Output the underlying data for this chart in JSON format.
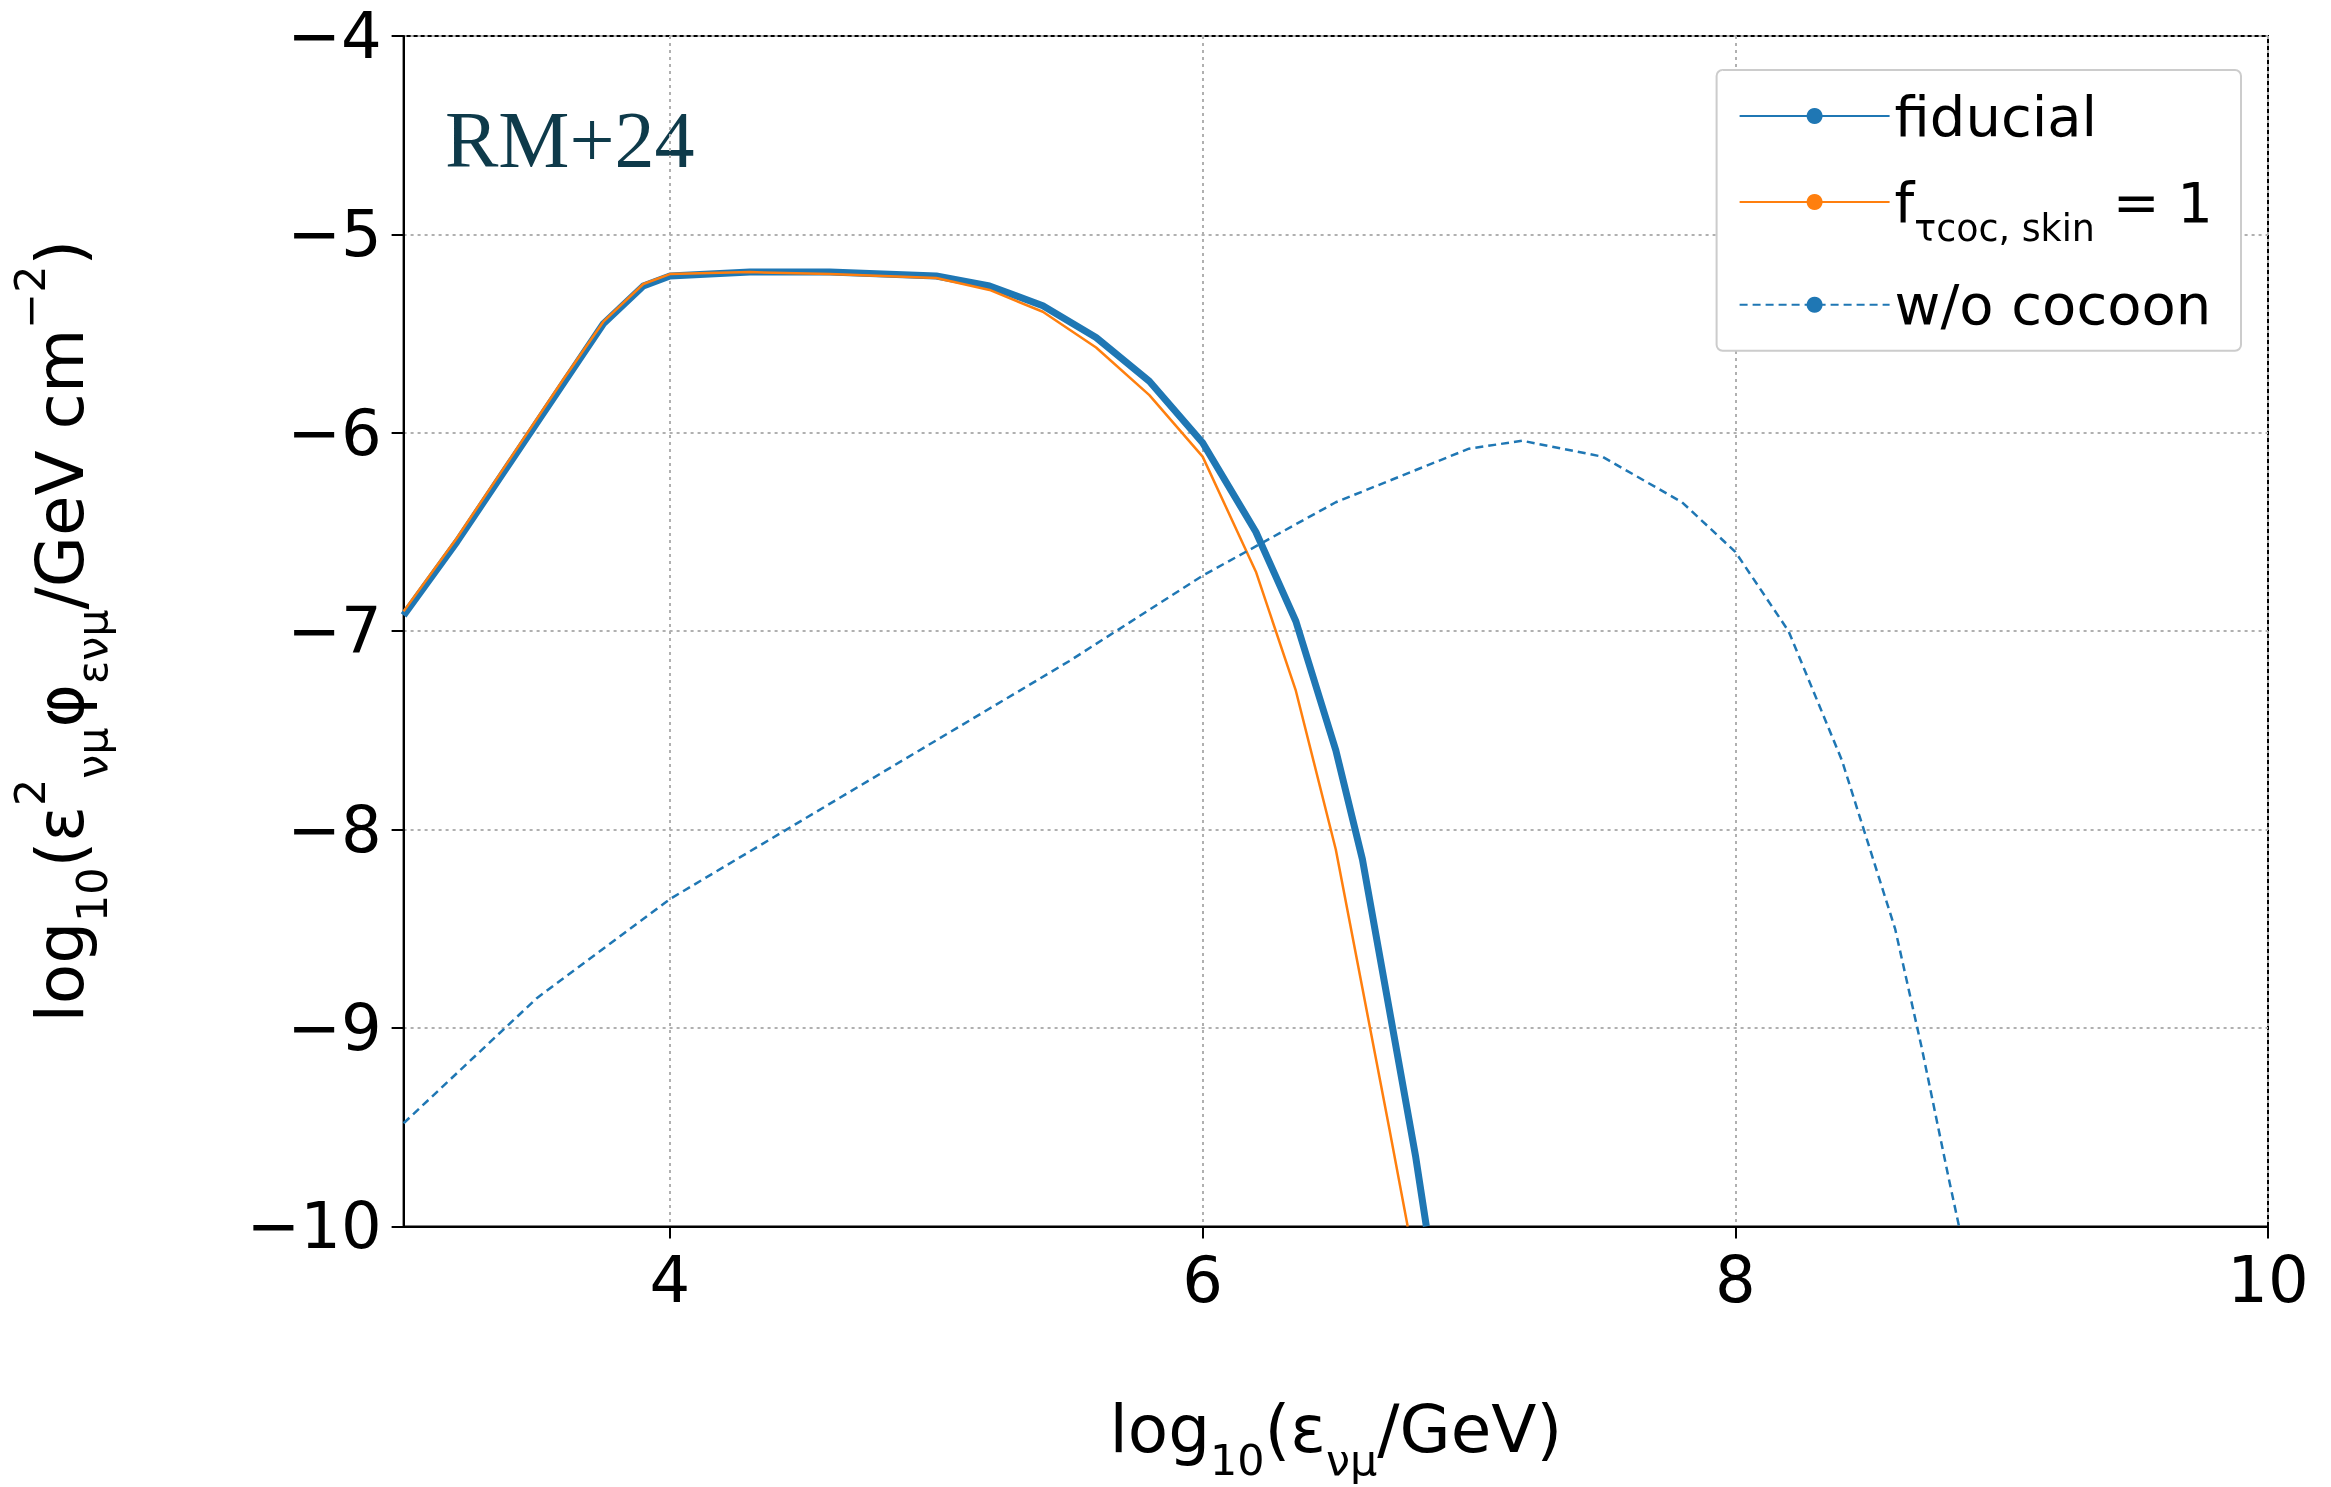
{
  "chart_data": {
    "type": "line",
    "xlabel": "log$_{10}$(ε$_{νμ}$/GeV)",
    "ylabel": "log$_{10}$(ε$^{2}$$_{νμ}$φ$_{ενμ}$/GeV cm$^{−2}$)",
    "annotations": [
      "RM+24"
    ],
    "xlim": [
      3,
      10
    ],
    "xticks": [
      4,
      6,
      8,
      10
    ],
    "ylim": [
      -10,
      -4
    ],
    "yticks": [
      -10,
      -9,
      -8,
      -7,
      -6,
      -5,
      -4
    ],
    "grid": true,
    "legend": "top right",
    "marker": "none",
    "series": [
      {
        "name": "fiducial",
        "color": "#1f77b4",
        "line_style": "solid",
        "x": [
          3,
          3.2,
          3.4,
          3.6,
          3.75,
          3.9,
          4.0,
          4.3,
          4.6,
          5.0,
          5.2,
          5.4,
          5.6,
          5.8,
          6.0,
          6.2,
          6.35,
          6.5,
          6.6,
          6.7,
          6.8,
          6.84
        ],
        "values": [
          -6.92,
          -6.55,
          -6.15,
          -5.75,
          -5.45,
          -5.26,
          -5.21,
          -5.19,
          -5.19,
          -5.21,
          -5.26,
          -5.36,
          -5.52,
          -5.74,
          -6.05,
          -6.5,
          -6.95,
          -7.6,
          -8.15,
          -8.9,
          -9.65,
          -10
        ]
      },
      {
        "name": "f$_{τcoc, skin}$ = 1",
        "color": "#ff7f0e",
        "line_style": "solid",
        "x": [
          3,
          3.2,
          3.4,
          3.6,
          3.75,
          3.9,
          4.0,
          4.3,
          4.6,
          5.0,
          5.2,
          5.4,
          5.6,
          5.8,
          6.0,
          6.2,
          6.35,
          6.5,
          6.6,
          6.7,
          6.77
        ],
        "values": [
          -6.9,
          -6.53,
          -6.13,
          -5.73,
          -5.44,
          -5.25,
          -5.2,
          -5.19,
          -5.2,
          -5.22,
          -5.28,
          -5.39,
          -5.57,
          -5.81,
          -6.12,
          -6.7,
          -7.3,
          -8.1,
          -8.8,
          -9.5,
          -10
        ]
      },
      {
        "name": "w/o cocoon",
        "color": "#1f77b4",
        "line_style": "dashed",
        "x": [
          3,
          3.5,
          4,
          4.5,
          5,
          5.5,
          6,
          6.5,
          7,
          7.2,
          7.5,
          7.8,
          8,
          8.2,
          8.4,
          8.6,
          8.7,
          8.8,
          8.84
        ],
        "values": [
          -9.48,
          -8.85,
          -8.35,
          -7.95,
          -7.55,
          -7.15,
          -6.72,
          -6.35,
          -6.08,
          -6.04,
          -6.12,
          -6.35,
          -6.6,
          -7.0,
          -7.65,
          -8.5,
          -9.1,
          -9.75,
          -10
        ]
      }
    ]
  }
}
